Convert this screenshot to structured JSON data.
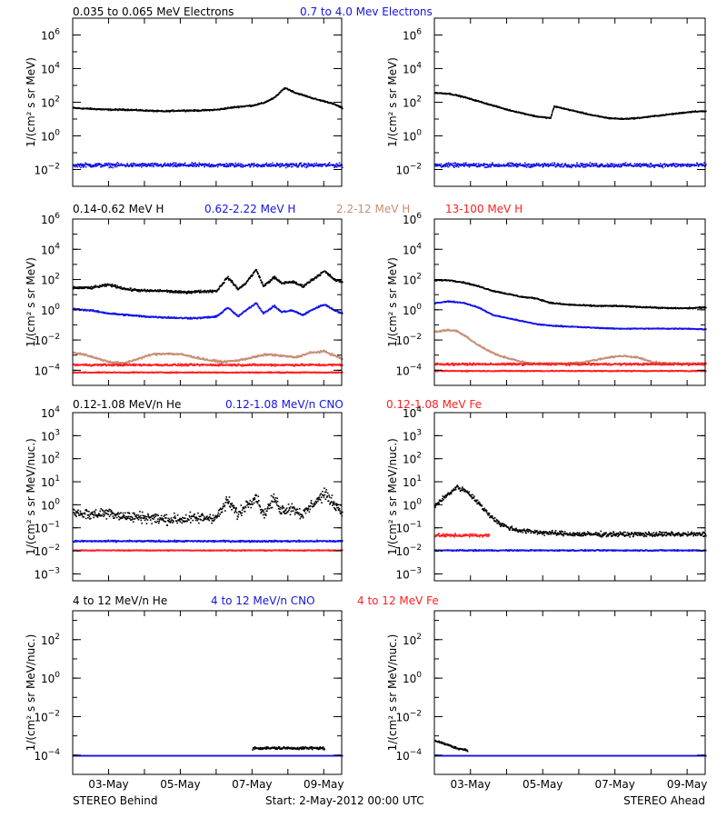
{
  "colors": {
    "black": "#000000",
    "blue": "#1414e6",
    "tan": "#c78e74",
    "red": "#ff2020"
  },
  "footer": {
    "left": "STEREO Behind",
    "center": "Start:  2-May-2012 00:00 UTC",
    "right": "STEREO Ahead"
  },
  "chart_data": [
    {
      "type": "scatter",
      "panel": "electrons",
      "ylabel": "1/(cm² s sr MeV)",
      "yscale": "log",
      "ylim": [
        -3,
        7
      ],
      "yticks": [
        -2,
        0,
        2,
        4,
        6
      ],
      "x_tick_labels": [
        "03-May",
        "05-May",
        "07-May",
        "09-May"
      ],
      "x_ticks_days": [
        1,
        3,
        5,
        7
      ],
      "xlim_days": [
        0,
        7.5
      ],
      "legend": [
        {
          "label": "0.035 to 0.065 MeV Electrons",
          "color": "black"
        },
        {
          "label": "0.7 to 4.0 Mev Electrons",
          "color": "blue"
        }
      ],
      "behind": [
        {
          "name": "0.035 to 0.065 MeV Electrons",
          "color": "black",
          "x": [
            0,
            0.5,
            1,
            1.5,
            2,
            2.5,
            3,
            3.5,
            4,
            4.5,
            5,
            5.3,
            5.6,
            5.9,
            6.2,
            6.5,
            6.8,
            7.1,
            7.3,
            7.5
          ],
          "logy": [
            1.7,
            1.65,
            1.6,
            1.6,
            1.55,
            1.5,
            1.55,
            1.55,
            1.6,
            1.75,
            1.85,
            2.0,
            2.3,
            2.9,
            2.6,
            2.4,
            2.2,
            2.05,
            1.9,
            1.7
          ],
          "scatter": 0.06
        },
        {
          "name": "0.7 to 4.0 Mev Electrons",
          "color": "blue",
          "x": [
            0,
            7.5
          ],
          "logy": [
            -1.7,
            -1.7
          ],
          "scatter": 0.18
        }
      ],
      "ahead": [
        {
          "name": "0.035 to 0.065 MeV Electrons",
          "color": "black",
          "x": [
            0,
            0.4,
            0.8,
            1.2,
            1.6,
            2,
            2.4,
            2.8,
            3.2,
            3.3,
            3.6,
            4,
            4.4,
            4.8,
            5.2,
            5.6,
            6,
            6.4,
            6.8,
            7.2,
            7.5
          ],
          "logy": [
            2.6,
            2.55,
            2.35,
            2.1,
            1.85,
            1.6,
            1.4,
            1.2,
            1.1,
            1.8,
            1.65,
            1.45,
            1.25,
            1.1,
            1.05,
            1.1,
            1.2,
            1.3,
            1.4,
            1.5,
            1.5
          ],
          "scatter": 0.05
        },
        {
          "name": "0.7 to 4.0 Mev Electrons",
          "color": "blue",
          "x": [
            0,
            7.5
          ],
          "logy": [
            -1.7,
            -1.7
          ],
          "scatter": 0.18
        }
      ]
    },
    {
      "type": "scatter",
      "panel": "protons",
      "ylabel": "1/(cm² s sr MeV)",
      "yscale": "log",
      "ylim": [
        -5,
        6
      ],
      "yticks": [
        -4,
        -2,
        0,
        2,
        4,
        6
      ],
      "x_tick_labels": [
        "03-May",
        "05-May",
        "07-May",
        "09-May"
      ],
      "x_ticks_days": [
        1,
        3,
        5,
        7
      ],
      "xlim_days": [
        0,
        7.5
      ],
      "legend": [
        {
          "label": "0.14-0.62 MeV H",
          "color": "black"
        },
        {
          "label": "0.62-2.22 MeV H",
          "color": "blue"
        },
        {
          "label": "2.2-12 MeV H",
          "color": "tan"
        },
        {
          "label": "13-100 MeV H",
          "color": "red"
        }
      ],
      "behind": [
        {
          "name": "0.14-0.62 MeV H",
          "color": "black",
          "x": [
            0,
            0.5,
            1,
            1.5,
            2,
            2.5,
            3,
            3.5,
            4,
            4.3,
            4.6,
            4.8,
            5.1,
            5.3,
            5.6,
            5.8,
            6.1,
            6.4,
            6.7,
            7,
            7.3,
            7.5
          ],
          "logy": [
            1.5,
            1.5,
            1.7,
            1.4,
            1.3,
            1.3,
            1.2,
            1.25,
            1.3,
            2.2,
            1.4,
            1.8,
            2.7,
            1.6,
            2.2,
            1.8,
            1.9,
            1.6,
            2.1,
            2.6,
            2.0,
            1.9
          ],
          "scatter": 0.12
        },
        {
          "name": "0.62-2.22 MeV H",
          "color": "blue",
          "x": [
            0,
            0.5,
            1,
            1.5,
            2,
            2.5,
            3,
            3.5,
            4,
            4.3,
            4.6,
            4.8,
            5.1,
            5.3,
            5.6,
            5.8,
            6.1,
            6.4,
            6.7,
            7,
            7.3,
            7.5
          ],
          "logy": [
            0.1,
            0.0,
            -0.2,
            -0.3,
            -0.4,
            -0.45,
            -0.5,
            -0.5,
            -0.4,
            0.2,
            -0.4,
            0.0,
            0.5,
            -0.2,
            0.3,
            -0.1,
            0.0,
            -0.3,
            0.1,
            0.4,
            0.0,
            -0.2
          ],
          "scatter": 0.08
        },
        {
          "name": "2.2-12 MeV H",
          "color": "tan",
          "x": [
            0,
            0.3,
            0.7,
            1,
            1.4,
            1.8,
            2.2,
            2.6,
            3,
            3.4,
            3.8,
            4.2,
            4.6,
            5,
            5.4,
            5.8,
            6.2,
            6.6,
            7,
            7.3,
            7.5
          ],
          "logy": [
            -2.8,
            -2.9,
            -3.2,
            -3.4,
            -3.5,
            -3.2,
            -2.9,
            -2.85,
            -2.9,
            -3.1,
            -3.3,
            -3.4,
            -3.3,
            -3.1,
            -2.9,
            -3.0,
            -3.1,
            -2.8,
            -2.7,
            -3.0,
            -3.2
          ],
          "scatter": 0.1
        },
        {
          "name": "13-100 MeV H",
          "color": "red",
          "x": [
            0,
            7.5
          ],
          "logy": [
            -3.6,
            -3.6
          ],
          "scatter": 0.1
        },
        {
          "name": "13-100 MeV H floor",
          "color": "red",
          "x": [
            0,
            7.5
          ],
          "logy": [
            -4.1,
            -4.1
          ],
          "scatter": 0.05
        }
      ],
      "ahead": [
        {
          "name": "0.14-0.62 MeV H",
          "color": "black",
          "x": [
            0,
            0.4,
            0.8,
            1.2,
            1.6,
            2,
            2.4,
            2.8,
            3.2,
            3.6,
            4,
            4.5,
            5,
            5.5,
            6,
            6.5,
            7,
            7.5
          ],
          "logy": [
            2.0,
            2.0,
            1.85,
            1.6,
            1.3,
            1.1,
            0.9,
            0.8,
            0.5,
            0.4,
            0.35,
            0.3,
            0.3,
            0.25,
            0.2,
            0.15,
            0.15,
            0.2
          ],
          "scatter": 0.06
        },
        {
          "name": "0.62-2.22 MeV H",
          "color": "blue",
          "x": [
            0,
            0.4,
            0.8,
            1.2,
            1.6,
            2,
            2.4,
            2.8,
            3.2,
            3.6,
            4,
            4.5,
            5,
            5.5,
            6,
            6.5,
            7,
            7.5
          ],
          "logy": [
            0.5,
            0.6,
            0.5,
            0.2,
            -0.3,
            -0.5,
            -0.7,
            -0.9,
            -1.0,
            -1.05,
            -1.1,
            -1.15,
            -1.2,
            -1.2,
            -1.2,
            -1.2,
            -1.2,
            -1.25
          ],
          "scatter": 0.05
        },
        {
          "name": "2.2-12 MeV H",
          "color": "tan",
          "x": [
            0,
            0.3,
            0.6,
            0.9,
            1.2,
            1.5,
            1.8,
            2.1,
            2.4,
            2.7,
            3.0,
            3.3,
            3.6,
            4,
            4.4,
            4.8,
            5.2,
            5.6,
            6,
            6.4,
            6.8,
            7.2,
            7.5
          ],
          "logy": [
            -1.4,
            -1.3,
            -1.35,
            -1.8,
            -2.3,
            -2.7,
            -3.0,
            -3.2,
            -3.4,
            -3.5,
            -3.5,
            -3.5,
            -3.5,
            -3.45,
            -3.3,
            -3.1,
            -3.0,
            -3.1,
            -3.4,
            -3.5,
            -3.5,
            -3.5,
            -3.5
          ],
          "scatter": 0.08
        },
        {
          "name": "13-100 MeV H",
          "color": "red",
          "x": [
            0,
            7.5
          ],
          "logy": [
            -3.55,
            -3.55
          ],
          "scatter": 0.1
        },
        {
          "name": "13-100 MeV H floor",
          "color": "red",
          "x": [
            0,
            7.5
          ],
          "logy": [
            -4.0,
            -4.0
          ],
          "scatter": 0.05
        }
      ]
    },
    {
      "type": "scatter",
      "panel": "heavy-low",
      "ylabel": "1/(cm² s sr MeV/nuc.)",
      "yscale": "log",
      "ylim": [
        -3.3,
        4
      ],
      "yticks": [
        -3,
        -2,
        -1,
        0,
        1,
        2,
        3,
        4
      ],
      "x_tick_labels": [
        "03-May",
        "05-May",
        "07-May",
        "09-May"
      ],
      "x_ticks_days": [
        1,
        3,
        5,
        7
      ],
      "xlim_days": [
        0,
        7.5
      ],
      "legend": [
        {
          "label": "0.12-1.08 MeV/n He",
          "color": "black"
        },
        {
          "label": "0.12-1.08 MeV/n CNO",
          "color": "blue"
        },
        {
          "label": "0.12-1.08 MeV Fe",
          "color": "red"
        }
      ],
      "behind": [
        {
          "name": "0.12-1.08 MeV/n He",
          "color": "black",
          "x": [
            0,
            0.5,
            1,
            1.5,
            2,
            2.5,
            3,
            3.5,
            4,
            4.3,
            4.6,
            4.8,
            5.1,
            5.3,
            5.6,
            5.8,
            6.1,
            6.4,
            6.7,
            7,
            7.2,
            7.5
          ],
          "logy": [
            -0.3,
            -0.4,
            -0.3,
            -0.5,
            -0.5,
            -0.6,
            -0.6,
            -0.55,
            -0.5,
            0.2,
            -0.4,
            0.0,
            0.4,
            -0.4,
            0.3,
            -0.2,
            -0.1,
            -0.4,
            0.1,
            0.5,
            0.2,
            -0.3
          ],
          "scatter": 0.35
        },
        {
          "name": "0.12-1.08 MeV/n CNO",
          "color": "blue",
          "x": [
            0,
            7.5
          ],
          "logy": [
            -1.55,
            -1.55
          ],
          "scatter": 0.05
        },
        {
          "name": "0.12-1.08 MeV Fe",
          "color": "red",
          "x": [
            0,
            7.5
          ],
          "logy": [
            -1.95,
            -1.95
          ],
          "scatter": 0.03
        }
      ],
      "ahead": [
        {
          "name": "0.12-1.08 MeV/n He",
          "color": "black",
          "x": [
            0,
            0.3,
            0.6,
            0.9,
            1.2,
            1.5,
            1.8,
            2.1,
            2.4,
            2.8,
            3.2,
            4,
            5,
            6,
            7,
            7.5
          ],
          "logy": [
            0.0,
            0.4,
            0.8,
            0.6,
            0.1,
            -0.4,
            -0.8,
            -1.0,
            -1.1,
            -1.15,
            -1.2,
            -1.25,
            -1.25,
            -1.25,
            -1.25,
            -1.25
          ],
          "scatter": 0.15
        },
        {
          "name": "0.12-1.08 MeV/n CNO",
          "color": "blue",
          "x": [
            0,
            7.5
          ],
          "logy": [
            -1.95,
            -1.95
          ],
          "scatter": 0.04
        },
        {
          "name": "0.12-1.08 MeV Fe",
          "color": "red",
          "x": [
            0,
            1.5
          ],
          "logy": [
            -1.3,
            -1.3
          ],
          "scatter": 0.1
        }
      ]
    },
    {
      "type": "scatter",
      "panel": "heavy-high",
      "ylabel": "1/(cm² s sr MeV/nuc.)",
      "yscale": "log",
      "ylim": [
        -5,
        3.5
      ],
      "yticks": [
        -4,
        -2,
        0,
        2
      ],
      "x_tick_labels": [
        "03-May",
        "05-May",
        "07-May",
        "09-May"
      ],
      "x_ticks_days": [
        1,
        3,
        5,
        7
      ],
      "xlim_days": [
        0,
        7.5
      ],
      "legend": [
        {
          "label": "4 to 12 MeV/n He",
          "color": "black"
        },
        {
          "label": "4 to 12 MeV/n CNO",
          "color": "blue"
        },
        {
          "label": "4 to 12 MeV Fe",
          "color": "red"
        }
      ],
      "behind": [
        {
          "name": "4 to 12 MeV/n He",
          "color": "black",
          "x": [
            5.0,
            7.0
          ],
          "logy": [
            -3.6,
            -3.6
          ],
          "scatter": 0.1
        },
        {
          "name": "4 to 12 MeV/n CNO",
          "color": "blue",
          "x": [
            0,
            7.5
          ],
          "logy": [
            -4.0,
            -4.0
          ],
          "scatter": 0.0
        }
      ],
      "ahead": [
        {
          "name": "4 to 12 MeV/n He",
          "color": "black",
          "x": [
            0,
            0.3,
            0.6,
            0.9
          ],
          "logy": [
            -3.2,
            -3.4,
            -3.6,
            -3.7
          ],
          "scatter": 0.08
        },
        {
          "name": "4 to 12 MeV/n CNO",
          "color": "blue",
          "x": [
            0,
            7.5
          ],
          "logy": [
            -4.0,
            -4.0
          ],
          "scatter": 0.0
        }
      ]
    }
  ]
}
